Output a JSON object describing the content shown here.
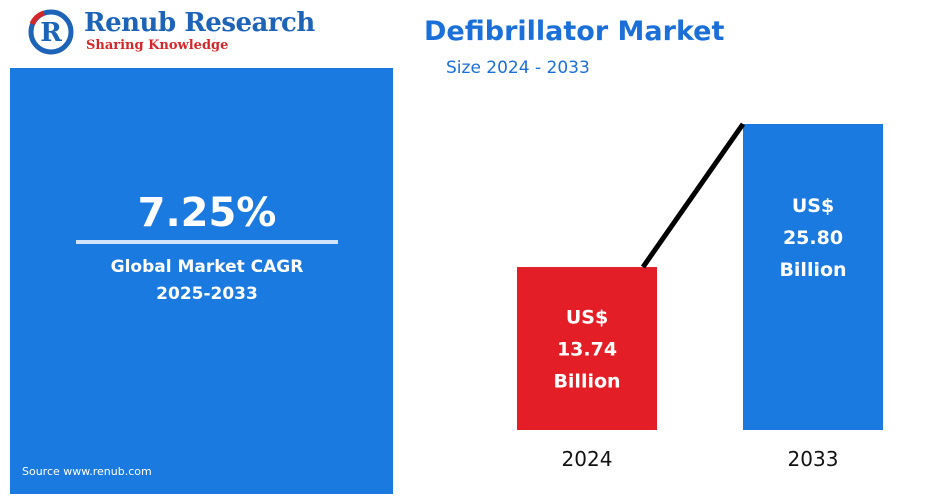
{
  "logo": {
    "name": "Renub Research",
    "tagline": "Sharing Knowledge"
  },
  "panel": {
    "cagr_value": "7.25%",
    "cagr_label_line1": "Global Market CAGR",
    "cagr_label_line2": "2025-2033",
    "source": "Source  www.renub.com"
  },
  "chart_data": {
    "type": "bar",
    "title": "Defibrillator Market",
    "subtitle": "Size 2024 - 2033",
    "categories": [
      "2024",
      "2033"
    ],
    "values": [
      13.74,
      25.8
    ],
    "value_labels": [
      [
        "US$",
        "13.74",
        "Billion"
      ],
      [
        "US$",
        "25.80",
        "Billion"
      ]
    ],
    "trend_line": true,
    "colors": [
      "#e41e26",
      "#1a7ae0"
    ],
    "grid": false
  },
  "colors": {
    "panel": "#1a7ae0",
    "title": "#1a6fd8",
    "logo_blue": "#1d63b8",
    "logo_red": "#d4272a"
  }
}
